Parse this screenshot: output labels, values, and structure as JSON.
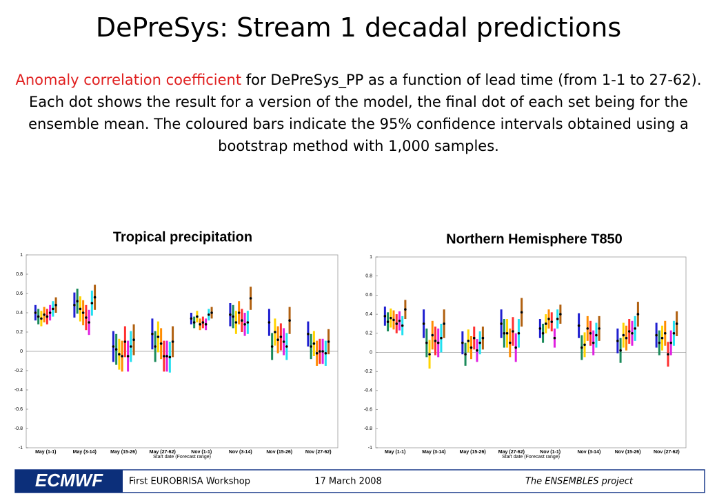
{
  "title": "DePreSys: Stream 1 decadal predictions",
  "description_highlight": "Anomaly correlation coefficient",
  "description": " for DePreSys_PP as a function of lead time (from 1-1 to 27-62). Each dot shows the result for a version of the model, the final dot of each set being for the ensemble mean. The coloured bars indicate the 95% confidence intervals obtained using a bootstrap method with 1,000 samples.",
  "footer": {
    "logo": "ECMWF",
    "left": "First EUROBRISA Workshop",
    "center": "17 March 2008",
    "right": "The ENSEMBLES project"
  },
  "chart_data": [
    {
      "type": "errorbar",
      "title": "Tropical precipitation",
      "xlabel": "Start date (Forecast range)",
      "categories": [
        "May (1-1)",
        "May (3-14)",
        "May (15-26)",
        "May (27-62)",
        "Nov (1-1)",
        "Nov (3-14)",
        "Nov (15-26)",
        "Nov (27-62)"
      ],
      "ylim": [
        -1,
        1
      ],
      "yticks": [
        -1,
        -0.8,
        -0.6,
        -0.4,
        -0.2,
        0,
        0.2,
        0.4,
        0.6,
        0.8,
        1
      ],
      "series": [
        {
          "color": "#1f1fd0",
          "values": [
            0.4,
            0.48,
            0.05,
            0.18,
            0.34,
            0.38,
            0.3,
            0.18
          ],
          "errors": [
            0.08,
            0.13,
            0.16,
            0.16,
            0.06,
            0.12,
            0.14,
            0.13
          ]
        },
        {
          "color": "#1a8a5a",
          "values": [
            0.36,
            0.52,
            0.02,
            0.05,
            0.3,
            0.36,
            0.05,
            0.05
          ],
          "errors": [
            0.08,
            0.13,
            0.16,
            0.16,
            0.06,
            0.12,
            0.14,
            0.13
          ]
        },
        {
          "color": "#ffd400",
          "values": [
            0.34,
            0.44,
            -0.03,
            0.15,
            0.36,
            0.3,
            0.2,
            0.08
          ],
          "errors": [
            0.08,
            0.13,
            0.16,
            0.16,
            0.06,
            0.12,
            0.14,
            0.13
          ]
        },
        {
          "color": "#ff8c00",
          "values": [
            0.38,
            0.4,
            -0.05,
            0.08,
            0.28,
            0.4,
            0.12,
            -0.02
          ],
          "errors": [
            0.08,
            0.13,
            0.16,
            0.16,
            0.06,
            0.12,
            0.14,
            0.13
          ]
        },
        {
          "color": "#ff3030",
          "values": [
            0.36,
            0.35,
            0.1,
            -0.05,
            0.3,
            0.32,
            0.15,
            0.0
          ],
          "errors": [
            0.08,
            0.13,
            0.16,
            0.16,
            0.06,
            0.12,
            0.14,
            0.13
          ]
        },
        {
          "color": "#e020e0",
          "values": [
            0.4,
            0.3,
            -0.05,
            -0.05,
            0.28,
            0.28,
            0.1,
            0.0
          ],
          "errors": [
            0.08,
            0.13,
            0.16,
            0.16,
            0.06,
            0.12,
            0.14,
            0.13
          ]
        },
        {
          "color": "#20e0f0",
          "values": [
            0.44,
            0.5,
            0.05,
            -0.06,
            0.38,
            0.3,
            0.05,
            -0.02
          ],
          "errors": [
            0.08,
            0.13,
            0.16,
            0.16,
            0.06,
            0.12,
            0.14,
            0.13
          ]
        },
        {
          "color": "#b06010",
          "values": [
            0.48,
            0.56,
            0.12,
            0.1,
            0.4,
            0.55,
            0.32,
            0.1
          ],
          "errors": [
            0.08,
            0.13,
            0.16,
            0.16,
            0.06,
            0.12,
            0.14,
            0.13
          ]
        }
      ]
    },
    {
      "type": "errorbar",
      "title": "Northern Hemisphere T850",
      "xlabel": "Start date (Forecast range)",
      "categories": [
        "May (1-1)",
        "May (3-14)",
        "May (15-26)",
        "May (27-62)",
        "Nov (1-1)",
        "Nov (3-14)",
        "Nov (15-26)",
        "Nov (27-62)"
      ],
      "ylim": [
        -1,
        1
      ],
      "yticks": [
        -1,
        -0.8,
        -0.6,
        -0.4,
        -0.2,
        0,
        0.2,
        0.4,
        0.6,
        0.8,
        1
      ],
      "series": [
        {
          "color": "#1f1fd0",
          "values": [
            0.38,
            0.3,
            0.1,
            0.3,
            0.25,
            0.28,
            0.12,
            0.18
          ],
          "errors": [
            0.1,
            0.15,
            0.12,
            0.15,
            0.1,
            0.13,
            0.13,
            0.13
          ]
        },
        {
          "color": "#1a8a5a",
          "values": [
            0.32,
            0.1,
            -0.02,
            0.2,
            0.2,
            0.05,
            0.02,
            0.1
          ],
          "errors": [
            0.1,
            0.15,
            0.12,
            0.15,
            0.1,
            0.13,
            0.13,
            0.13
          ]
        },
        {
          "color": "#ffd400",
          "values": [
            0.36,
            -0.02,
            0.12,
            0.2,
            0.3,
            0.08,
            0.18,
            0.15
          ],
          "errors": [
            0.1,
            0.15,
            0.12,
            0.15,
            0.1,
            0.13,
            0.13,
            0.13
          ]
        },
        {
          "color": "#ff8c00",
          "values": [
            0.34,
            0.18,
            0.05,
            0.1,
            0.35,
            0.25,
            0.15,
            0.2
          ],
          "errors": [
            0.1,
            0.15,
            0.12,
            0.15,
            0.1,
            0.13,
            0.13,
            0.13
          ]
        },
        {
          "color": "#ff3030",
          "values": [
            0.3,
            0.12,
            0.15,
            0.22,
            0.32,
            0.2,
            0.22,
            -0.02
          ],
          "errors": [
            0.1,
            0.15,
            0.12,
            0.15,
            0.1,
            0.13,
            0.13,
            0.13
          ]
        },
        {
          "color": "#e020e0",
          "values": [
            0.33,
            0.1,
            0.02,
            0.05,
            0.15,
            0.1,
            0.2,
            0.1
          ],
          "errors": [
            0.1,
            0.15,
            0.12,
            0.15,
            0.1,
            0.13,
            0.13,
            0.13
          ]
        },
        {
          "color": "#20e0f0",
          "values": [
            0.28,
            0.15,
            0.1,
            0.2,
            0.35,
            0.18,
            0.25,
            0.2
          ],
          "errors": [
            0.1,
            0.15,
            0.12,
            0.15,
            0.1,
            0.13,
            0.13,
            0.13
          ]
        },
        {
          "color": "#b06010",
          "values": [
            0.45,
            0.3,
            0.15,
            0.42,
            0.4,
            0.25,
            0.4,
            0.3
          ],
          "errors": [
            0.1,
            0.15,
            0.12,
            0.15,
            0.1,
            0.13,
            0.13,
            0.13
          ]
        }
      ]
    }
  ]
}
